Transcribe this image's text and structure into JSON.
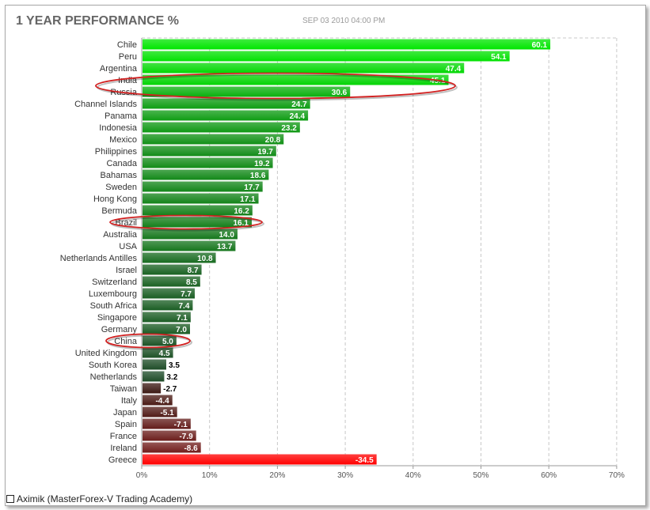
{
  "header": {
    "title": "1 YEAR PERFORMANCE %",
    "timestamp": "SEP 03 2010 04:00 PM"
  },
  "footer": {
    "credit": "Aximik (MasterForex-V Trading Academy)"
  },
  "colors": {
    "positive_strong": "#00e600",
    "positive_weak": "#1e4a28",
    "negative_weak": "#3a1a14",
    "negative_strong": "#ff0000",
    "highlight_ellipse": "#d22020",
    "grid": "#c8c8c8"
  },
  "chart_data": {
    "type": "bar",
    "orientation": "horizontal",
    "title": "1 YEAR PERFORMANCE %",
    "xlim": [
      0,
      70
    ],
    "x_ticks": [
      "0%",
      "10%",
      "20%",
      "30%",
      "40%",
      "50%",
      "60%",
      "70%"
    ],
    "grid": true,
    "categories": [
      "Chile",
      "Peru",
      "Argentina",
      "India",
      "Russia",
      "Channel Islands",
      "Panama",
      "Indonesia",
      "Mexico",
      "Philippines",
      "Canada",
      "Bahamas",
      "Sweden",
      "Hong Kong",
      "Bermuda",
      "Brazil",
      "Australia",
      "USA",
      "Netherlands Antilles",
      "Israel",
      "Switzerland",
      "Luxembourg",
      "South Africa",
      "Singapore",
      "Germany",
      "China",
      "United Kingdom",
      "South Korea",
      "Netherlands",
      "Taiwan",
      "Italy",
      "Japan",
      "Spain",
      "France",
      "Ireland",
      "Greece"
    ],
    "values": [
      60.1,
      54.1,
      47.4,
      45.1,
      30.6,
      24.7,
      24.4,
      23.2,
      20.8,
      19.7,
      19.2,
      18.6,
      17.7,
      17.1,
      16.2,
      16.1,
      14.0,
      13.7,
      10.8,
      8.7,
      8.5,
      7.7,
      7.4,
      7.1,
      7.0,
      5.0,
      4.5,
      3.5,
      3.2,
      -2.7,
      -4.4,
      -5.1,
      -7.1,
      -7.9,
      -8.6,
      -34.5
    ],
    "value_labels": [
      "60.1",
      "54.1",
      "47.4",
      "45.1",
      "30.6",
      "24.7",
      "24.4",
      "23.2",
      "20.8",
      "19.7",
      "19.2",
      "18.6",
      "17.7",
      "17.1",
      "16.2",
      "16.1",
      "14.0",
      "13.7",
      "10.8",
      "8.7",
      "8.5",
      "7.7",
      "7.4",
      "7.1",
      "7.0",
      "5.0",
      "4.5",
      "3.5",
      "3.2",
      "-2.7",
      "-4.4",
      "-5.1",
      "-7.1",
      "-7.9",
      "-8.6",
      "-34.5"
    ],
    "negative_bars_drawn_by_magnitude": true,
    "highlighted": [
      [
        "India",
        "Russia"
      ],
      [
        "Brazil"
      ],
      [
        "China"
      ]
    ]
  }
}
